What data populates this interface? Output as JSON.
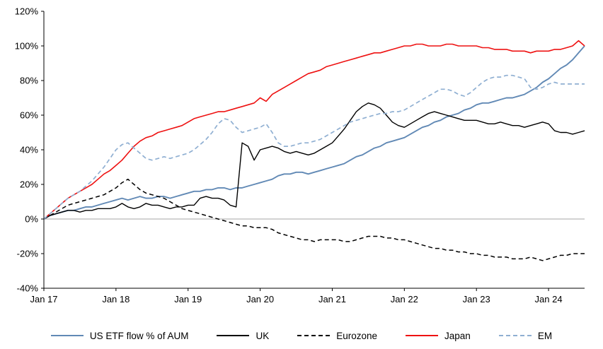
{
  "chart": {
    "title": "",
    "legend_labels": [
      "US ETF flow % of AUM",
      "UK",
      "Eurozone",
      "Japan",
      "EM"
    ],
    "background": "#ffffff",
    "zero_line_color": "#a6a6a6",
    "axis_color": "#000000"
  },
  "chart_data": {
    "type": "line",
    "title": "",
    "xlabel": "",
    "ylabel": "",
    "ylim": [
      -40,
      120
    ],
    "y_tick_step": 20,
    "y_ticks": {
      "values": [
        120,
        100,
        80,
        60,
        40,
        20,
        0,
        -20,
        -40
      ],
      "labels": [
        "120%",
        "100%",
        "80%",
        "60%",
        "40%",
        "20%",
        "0%",
        "-20%",
        "-40%"
      ]
    },
    "x_unit": "monthly points from Jan 2017 to Jul 2024",
    "x_total_months": 90,
    "x_ticks": {
      "months": [
        0,
        12,
        24,
        36,
        48,
        60,
        72,
        84
      ],
      "labels": [
        "Jan 17",
        "Jan 18",
        "Jan 19",
        "Jan 20",
        "Jan 21",
        "Jan 22",
        "Jan 23",
        "Jan 24"
      ]
    },
    "grid": "zero-line-only",
    "legend_position": "bottom",
    "series": [
      {
        "name": "US ETF flow % of AUM",
        "color": "#6189b5",
        "style": "solid",
        "width": 1.9,
        "values": [
          0,
          2,
          3,
          4,
          5,
          5,
          6,
          7,
          7,
          8,
          9,
          10,
          11,
          12,
          11,
          12,
          13,
          12,
          12,
          13,
          13,
          12,
          13,
          14,
          15,
          16,
          16,
          17,
          17,
          18,
          18,
          17,
          18,
          18,
          19,
          20,
          21,
          22,
          23,
          25,
          26,
          26,
          27,
          27,
          26,
          27,
          28,
          29,
          30,
          31,
          32,
          34,
          36,
          37,
          39,
          41,
          42,
          44,
          45,
          46,
          47,
          49,
          51,
          53,
          54,
          56,
          57,
          59,
          60,
          61,
          63,
          64,
          66,
          67,
          67,
          68,
          69,
          70,
          70,
          71,
          72,
          74,
          76,
          79,
          81,
          84,
          87,
          89,
          92,
          96,
          100
        ]
      },
      {
        "name": "UK",
        "color": "#000000",
        "style": "solid",
        "width": 1.4,
        "values": [
          0,
          2,
          3,
          4,
          5,
          5,
          4,
          5,
          5,
          6,
          6,
          6,
          7,
          9,
          7,
          6,
          7,
          9,
          8,
          8,
          7,
          6,
          7,
          7,
          8,
          8,
          12,
          13,
          12,
          12,
          11,
          8,
          7,
          44,
          42,
          34,
          40,
          41,
          42,
          41,
          39,
          38,
          39,
          38,
          37,
          38,
          40,
          42,
          44,
          48,
          52,
          57,
          62,
          65,
          67,
          66,
          64,
          60,
          56,
          54,
          53,
          55,
          57,
          59,
          61,
          62,
          61,
          60,
          59,
          58,
          57,
          57,
          57,
          56,
          55,
          55,
          56,
          55,
          54,
          54,
          53,
          54,
          55,
          56,
          55,
          51,
          50,
          50,
          49,
          50,
          51
        ]
      },
      {
        "name": "Eurozone",
        "color": "#000000",
        "style": "dashed",
        "width": 1.5,
        "values": [
          0,
          2,
          4,
          6,
          8,
          9,
          10,
          11,
          12,
          13,
          14,
          16,
          18,
          21,
          23,
          20,
          17,
          15,
          14,
          13,
          12,
          10,
          8,
          6,
          5,
          4,
          3,
          2,
          1,
          0,
          -1,
          -2,
          -3,
          -4,
          -4,
          -5,
          -5,
          -5,
          -6,
          -8,
          -9,
          -10,
          -11,
          -12,
          -12,
          -13,
          -12,
          -12,
          -12,
          -12,
          -13,
          -13,
          -12,
          -11,
          -10,
          -10,
          -10,
          -11,
          -11,
          -12,
          -12,
          -13,
          -14,
          -15,
          -16,
          -17,
          -17,
          -18,
          -18,
          -19,
          -19,
          -20,
          -20,
          -21,
          -21,
          -22,
          -22,
          -22,
          -23,
          -23,
          -23,
          -22,
          -23,
          -24,
          -23,
          -22,
          -21,
          -21,
          -20,
          -20,
          -20
        ]
      },
      {
        "name": "Japan",
        "color": "#ee1111",
        "style": "solid",
        "width": 1.6,
        "values": [
          0,
          3,
          6,
          9,
          12,
          14,
          16,
          18,
          20,
          23,
          26,
          28,
          31,
          34,
          38,
          42,
          45,
          47,
          48,
          50,
          51,
          52,
          53,
          54,
          56,
          58,
          59,
          60,
          61,
          62,
          62,
          63,
          64,
          65,
          66,
          67,
          70,
          68,
          72,
          74,
          76,
          78,
          80,
          82,
          84,
          85,
          86,
          88,
          89,
          90,
          91,
          92,
          93,
          94,
          95,
          96,
          96,
          97,
          98,
          99,
          100,
          100,
          101,
          101,
          100,
          100,
          100,
          101,
          101,
          100,
          100,
          100,
          100,
          99,
          99,
          98,
          98,
          98,
          97,
          97,
          97,
          96,
          97,
          97,
          97,
          98,
          98,
          99,
          100,
          103,
          100
        ]
      },
      {
        "name": "EM",
        "color": "#8fafd2",
        "style": "dashed",
        "width": 1.7,
        "values": [
          0,
          3,
          6,
          9,
          12,
          14,
          16,
          19,
          22,
          26,
          30,
          35,
          40,
          43,
          44,
          41,
          38,
          35,
          34,
          35,
          36,
          35,
          36,
          37,
          38,
          40,
          43,
          46,
          50,
          55,
          58,
          57,
          53,
          50,
          51,
          52,
          53,
          55,
          50,
          44,
          42,
          42,
          43,
          44,
          44,
          45,
          46,
          48,
          50,
          52,
          54,
          56,
          57,
          58,
          59,
          60,
          61,
          61,
          62,
          62,
          63,
          65,
          67,
          69,
          71,
          73,
          75,
          75,
          74,
          72,
          71,
          73,
          76,
          79,
          81,
          82,
          82,
          83,
          83,
          82,
          81,
          76,
          75,
          76,
          78,
          79,
          78,
          78,
          78,
          78,
          78
        ]
      }
    ]
  }
}
